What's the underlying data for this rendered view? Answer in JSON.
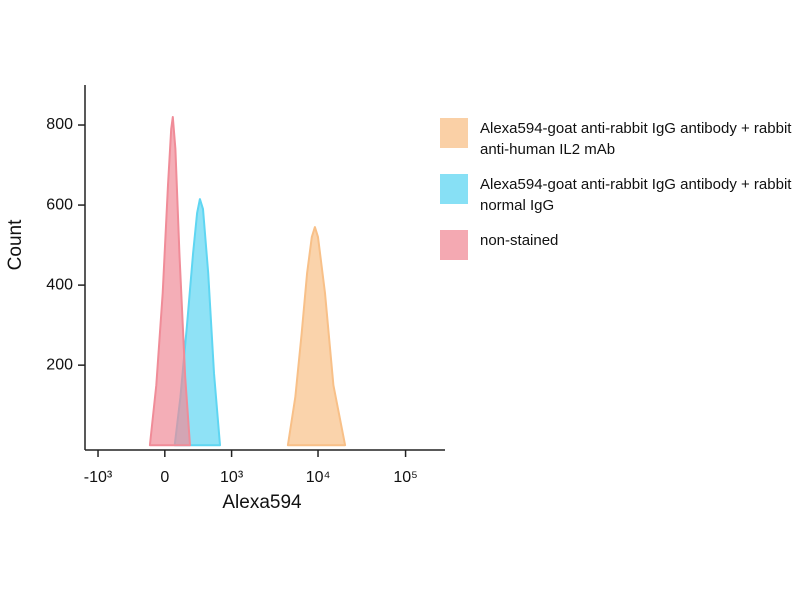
{
  "chart_data": {
    "type": "area",
    "xlabel": "Alexa594",
    "ylabel": "Count",
    "xscale": "biexponential",
    "xlim": [
      -1430,
      282000
    ],
    "xticks": [
      {
        "value": -1000,
        "label": "-10³"
      },
      0,
      {
        "value": 1000,
        "label": "10³"
      },
      {
        "value": 10000,
        "label": "10⁴"
      },
      {
        "value": 100000,
        "label": "10⁵"
      }
    ],
    "ylim": [
      -12,
      900
    ],
    "yticks": [
      200,
      400,
      600,
      800
    ],
    "series": [
      {
        "name": "Alexa594-goat anti-rabbit IgG antibody + rabbit anti-human IL2 mAb",
        "color": "#f8c088",
        "x": [
          4520,
          5500,
          6500,
          7500,
          8500,
          9200,
          10000,
          12000,
          15000,
          20360
        ],
        "values": [
          0,
          120,
          280,
          430,
          520,
          545,
          520,
          380,
          150,
          0
        ]
      },
      {
        "name": "Alexa594-goat anti-rabbit IgG antibody + rabbit normal IgG",
        "color": "#5fd6f2",
        "x": [
          94,
          150,
          220,
          290,
          340,
          377,
          420,
          500,
          600,
          719
        ],
        "values": [
          0,
          120,
          300,
          480,
          580,
          615,
          590,
          430,
          180,
          0
        ]
      },
      {
        "name": "non-stained",
        "color": "#f08c98",
        "x": [
          -143,
          -80,
          -20,
          30,
          60,
          75,
          100,
          140,
          200,
          253
        ],
        "values": [
          0,
          150,
          380,
          650,
          790,
          820,
          740,
          480,
          170,
          0
        ]
      }
    ]
  }
}
